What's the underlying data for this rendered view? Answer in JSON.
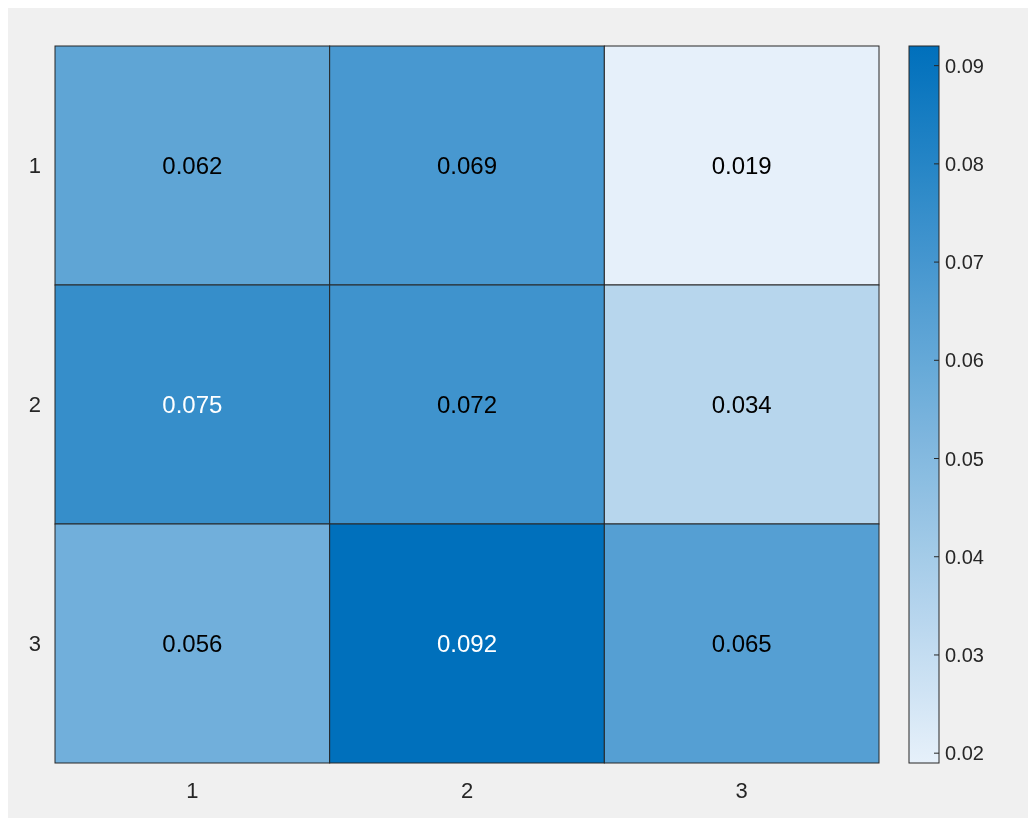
{
  "chart_data": {
    "type": "heatmap",
    "categories": [
      "1",
      "2",
      "3"
    ],
    "y_categories": [
      "1",
      "2",
      "3"
    ],
    "cells": [
      [
        0.062,
        0.069,
        0.019
      ],
      [
        0.075,
        0.072,
        0.034
      ],
      [
        0.056,
        0.092,
        0.065
      ]
    ],
    "data_labels": true,
    "clim": [
      0.019,
      0.092
    ],
    "cticks": [
      0.02,
      0.03,
      0.04,
      0.05,
      0.06,
      0.07,
      0.08,
      0.09
    ],
    "colors": [
      "#e6f0fa",
      "#0070bc"
    ]
  }
}
